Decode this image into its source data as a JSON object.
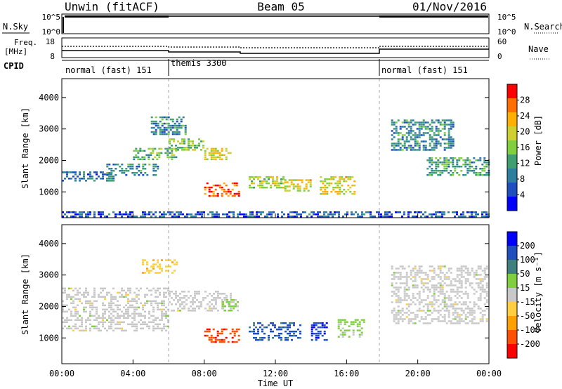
{
  "header": {
    "station": "Unwin (fitACF)",
    "beam": "Beam 05",
    "date": "01/Nov/2016"
  },
  "strips": {
    "nsky_label": "N.Sky",
    "nsky_ticks": [
      "10^5",
      "10^0"
    ],
    "nsearch_label": "N.Search",
    "nsearch_ticks": [
      "10^5",
      "10^0"
    ],
    "freq_label_1": "Freq.",
    "freq_label_2": "[MHz]",
    "freq_ticks": [
      "18",
      "8"
    ],
    "nave_label": "Nave",
    "nave_ticks": [
      "60",
      "0"
    ],
    "cpid_label": "CPID",
    "cpid_segments": [
      {
        "label": "normal (fast) 151",
        "start_hour": 0
      },
      {
        "label": "themis 3300",
        "start_hour": 6
      },
      {
        "label": "normal (fast) 151",
        "start_hour": 18
      }
    ]
  },
  "chart_data": [
    {
      "type": "heatmap",
      "panel": "power",
      "ylabel": "Slant Range [km]",
      "ylim": [
        180,
        4600
      ],
      "yticks": [
        1000,
        2000,
        3000,
        4000
      ],
      "xlim": [
        0,
        24
      ],
      "colorbar": {
        "label": "Power [dB]",
        "range": [
          0,
          32
        ],
        "tick_labels": [
          "4",
          "8",
          "12",
          "16",
          "20",
          "24",
          "28"
        ],
        "colors": [
          "#0000ff",
          "#1f4fbf",
          "#2e7f9f",
          "#3f9f6f",
          "#7fcf3f",
          "#cfcf2f",
          "#ffaf00",
          "#ff6f00",
          "#ff0000"
        ]
      },
      "echo_regions": [
        {
          "hours": [
            0.0,
            3.0
          ],
          "range_km": [
            1300,
            1650
          ],
          "level_db": 8
        },
        {
          "hours": [
            2.5,
            5.5
          ],
          "range_km": [
            1500,
            1900
          ],
          "level_db": 10
        },
        {
          "hours": [
            4.0,
            6.5
          ],
          "range_km": [
            2000,
            2400
          ],
          "level_db": 14
        },
        {
          "hours": [
            6.0,
            8.0
          ],
          "range_km": [
            2300,
            2700
          ],
          "level_db": 16
        },
        {
          "hours": [
            5.0,
            7.0
          ],
          "range_km": [
            2800,
            3400
          ],
          "level_db": 10
        },
        {
          "hours": [
            8.0,
            9.5
          ],
          "range_km": [
            2000,
            2400
          ],
          "level_db": 20
        },
        {
          "hours": [
            8.0,
            10.0
          ],
          "range_km": [
            800,
            1300
          ],
          "level_db": 28
        },
        {
          "hours": [
            10.5,
            12.5
          ],
          "range_km": [
            1100,
            1500
          ],
          "level_db": 18
        },
        {
          "hours": [
            12.5,
            14.0
          ],
          "range_km": [
            1000,
            1400
          ],
          "level_db": 20
        },
        {
          "hours": [
            14.5,
            16.5
          ],
          "range_km": [
            900,
            1500
          ],
          "level_db": 20
        },
        {
          "hours": [
            18.5,
            22.0
          ],
          "range_km": [
            2300,
            3300
          ],
          "level_db": 10
        },
        {
          "hours": [
            20.5,
            24.0
          ],
          "range_km": [
            1500,
            2100
          ],
          "level_db": 12
        },
        {
          "hours": [
            0.0,
            24.0
          ],
          "range_km": [
            200,
            380
          ],
          "level_db": 6
        }
      ]
    },
    {
      "type": "heatmap",
      "panel": "velocity",
      "ylabel": "Slant Range [km]",
      "ylim": [
        180,
        4600
      ],
      "yticks": [
        1000,
        2000,
        3000,
        4000
      ],
      "xlim": [
        0,
        24
      ],
      "xticks": [
        "00:00",
        "04:00",
        "08:00",
        "12:00",
        "16:00",
        "20:00",
        "00:00"
      ],
      "xlabel": "Time UT",
      "colorbar": {
        "label": "Velocity [m s⁻¹]",
        "range": [
          -250,
          250
        ],
        "tick_labels": [
          "200",
          "100",
          "50",
          "15",
          "-15",
          "-50",
          "-100",
          "-200"
        ],
        "colors": [
          "#0000ff",
          "#1f4fbf",
          "#3f7f7f",
          "#7fcf3f",
          "#c8c8c8",
          "#ffcf3f",
          "#ff9f00",
          "#ff4f00",
          "#ff0000"
        ]
      },
      "echo_regions": [
        {
          "hours": [
            0.0,
            6.0
          ],
          "range_km": [
            1200,
            2600
          ],
          "vel": 0
        },
        {
          "hours": [
            6.0,
            9.5
          ],
          "range_km": [
            1800,
            2500
          ],
          "vel": 0
        },
        {
          "hours": [
            9.0,
            10.0
          ],
          "range_km": [
            1800,
            2300
          ],
          "vel": 40
        },
        {
          "hours": [
            8.0,
            10.0
          ],
          "range_km": [
            800,
            1300
          ],
          "vel": -180
        },
        {
          "hours": [
            10.5,
            13.5
          ],
          "range_km": [
            900,
            1500
          ],
          "vel": 150
        },
        {
          "hours": [
            14.0,
            15.0
          ],
          "range_km": [
            900,
            1500
          ],
          "vel": 180
        },
        {
          "hours": [
            15.5,
            17.0
          ],
          "range_km": [
            1000,
            1600
          ],
          "vel": 40
        },
        {
          "hours": [
            18.5,
            24.0
          ],
          "range_km": [
            1400,
            3300
          ],
          "vel": 0
        },
        {
          "hours": [
            4.5,
            6.5
          ],
          "range_km": [
            3000,
            3500
          ],
          "vel": -60
        }
      ]
    }
  ]
}
